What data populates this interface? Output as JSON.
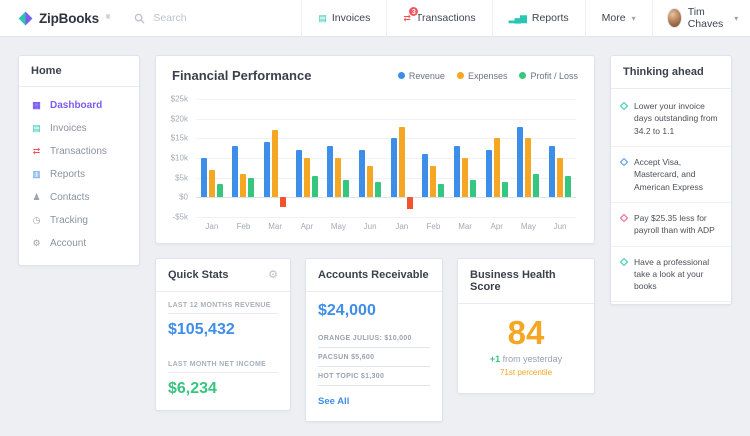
{
  "topbar": {
    "brand": "ZipBooks",
    "trademark": "®",
    "search_placeholder": "Search",
    "nav": [
      {
        "name": "invoices",
        "label": "Invoices",
        "glyph": "▤",
        "icon_color": "#2bc5b4"
      },
      {
        "name": "transactions",
        "label": "Transactions",
        "glyph": "⇄",
        "icon_color": "#ef5350",
        "badge": "3"
      },
      {
        "name": "reports",
        "label": "Reports",
        "glyph": "▂▄▆",
        "icon_color": "#2bc5b4"
      },
      {
        "name": "more",
        "label": "More",
        "chevron": "▾"
      }
    ],
    "user": {
      "name": "Tim Chaves",
      "chevron": "▾"
    }
  },
  "sidebar": {
    "home_label": "Home",
    "items": [
      {
        "name": "dashboard",
        "label": "Dashboard",
        "glyph": "▦",
        "icon_color": "#7c5cf0",
        "active": true
      },
      {
        "name": "invoices",
        "label": "Invoices",
        "glyph": "▤",
        "icon_color": "#2bc5b4"
      },
      {
        "name": "transactions",
        "label": "Transactions",
        "glyph": "⇄",
        "icon_color": "#ef5350"
      },
      {
        "name": "reports",
        "label": "Reports",
        "glyph": "▥",
        "icon_color": "#4a90e2"
      },
      {
        "name": "contacts",
        "label": "Contacts",
        "glyph": "♟",
        "icon_color": "#9aa3ae"
      },
      {
        "name": "tracking",
        "label": "Tracking",
        "glyph": "◷",
        "icon_color": "#9aa3ae"
      },
      {
        "name": "account",
        "label": "Account",
        "glyph": "⚙",
        "icon_color": "#9aa3ae"
      }
    ]
  },
  "chart_card": {
    "title": "Financial Performance",
    "legend": [
      {
        "name": "revenue",
        "label": "Revenue",
        "color": "#3d8ee8"
      },
      {
        "name": "expenses",
        "label": "Expenses",
        "color": "#f5a623"
      },
      {
        "name": "profit-loss",
        "label": "Profit / Loss",
        "color": "#36c67e"
      }
    ]
  },
  "chart_data": {
    "type": "bar",
    "title": "Financial Performance",
    "categories": [
      "Jan",
      "Feb",
      "Mar",
      "Apr",
      "May",
      "Jun",
      "Jan",
      "Feb",
      "Mar",
      "Apr",
      "May",
      "Jun"
    ],
    "series": [
      {
        "name": "Revenue",
        "color": "#3d8ee8",
        "values": [
          10000,
          13000,
          14000,
          12000,
          13000,
          12000,
          15000,
          11000,
          13000,
          12000,
          18000,
          13000
        ]
      },
      {
        "name": "Expenses",
        "color": "#f5a623",
        "values": [
          7000,
          6000,
          17000,
          10000,
          10000,
          8000,
          18000,
          8000,
          10000,
          15000,
          15000,
          10000
        ]
      },
      {
        "name": "Profit / Loss",
        "color": "#36c67e",
        "negative_color": "#f0532d",
        "values": [
          3500,
          5000,
          -2500,
          5500,
          4500,
          4000,
          -3000,
          3500,
          4500,
          4000,
          6000,
          5500
        ]
      }
    ],
    "ylim": [
      -5000,
      25000
    ],
    "y_ticks": [
      {
        "v": 25000,
        "label": "$25k"
      },
      {
        "v": 20000,
        "label": "$20k"
      },
      {
        "v": 15000,
        "label": "$15k"
      },
      {
        "v": 10000,
        "label": "$10k"
      },
      {
        "v": 5000,
        "label": "$5k"
      },
      {
        "v": 0,
        "label": "$0"
      },
      {
        "v": -5000,
        "label": "-$5k"
      }
    ],
    "grid": true,
    "legend_position": "top-right"
  },
  "quick_stats": {
    "title": "Quick Stats",
    "stats": [
      {
        "name": "revenue",
        "label": "LAST 12 MONTHS REVENUE",
        "value": "$105,432",
        "color": "#3d8ee8"
      },
      {
        "name": "net-income",
        "label": "LAST MONTH NET INCOME",
        "value": "$6,234",
        "color": "#36c67e"
      }
    ]
  },
  "accounts_receivable": {
    "title": "Accounts Receivable",
    "total": "$24,000",
    "items": [
      {
        "label": "ORANGE JULIUS: $10,000"
      },
      {
        "label": "PACSUN $5,600"
      },
      {
        "label": "HOT TOPIC $1,300"
      }
    ],
    "see_all": "See All"
  },
  "health_score": {
    "title": "Business Health Score",
    "score": "84",
    "delta": "+1",
    "delta_text": "from yesterday",
    "percentile": "71st percentile"
  },
  "thinking_ahead": {
    "title": "Thinking ahead",
    "items": [
      {
        "text": "Lower your invoice days outstanding from 34.2 to 1.1",
        "color": "#2bc5b4"
      },
      {
        "text": "Accept Visa, Mastercard, and American Express",
        "color": "#4a90e2"
      },
      {
        "text": "Pay $25.35 less for payroll than with ADP",
        "color": "#f0538c"
      },
      {
        "text": "Have a professional take a look at your books",
        "color": "#2bc5b4"
      }
    ]
  }
}
